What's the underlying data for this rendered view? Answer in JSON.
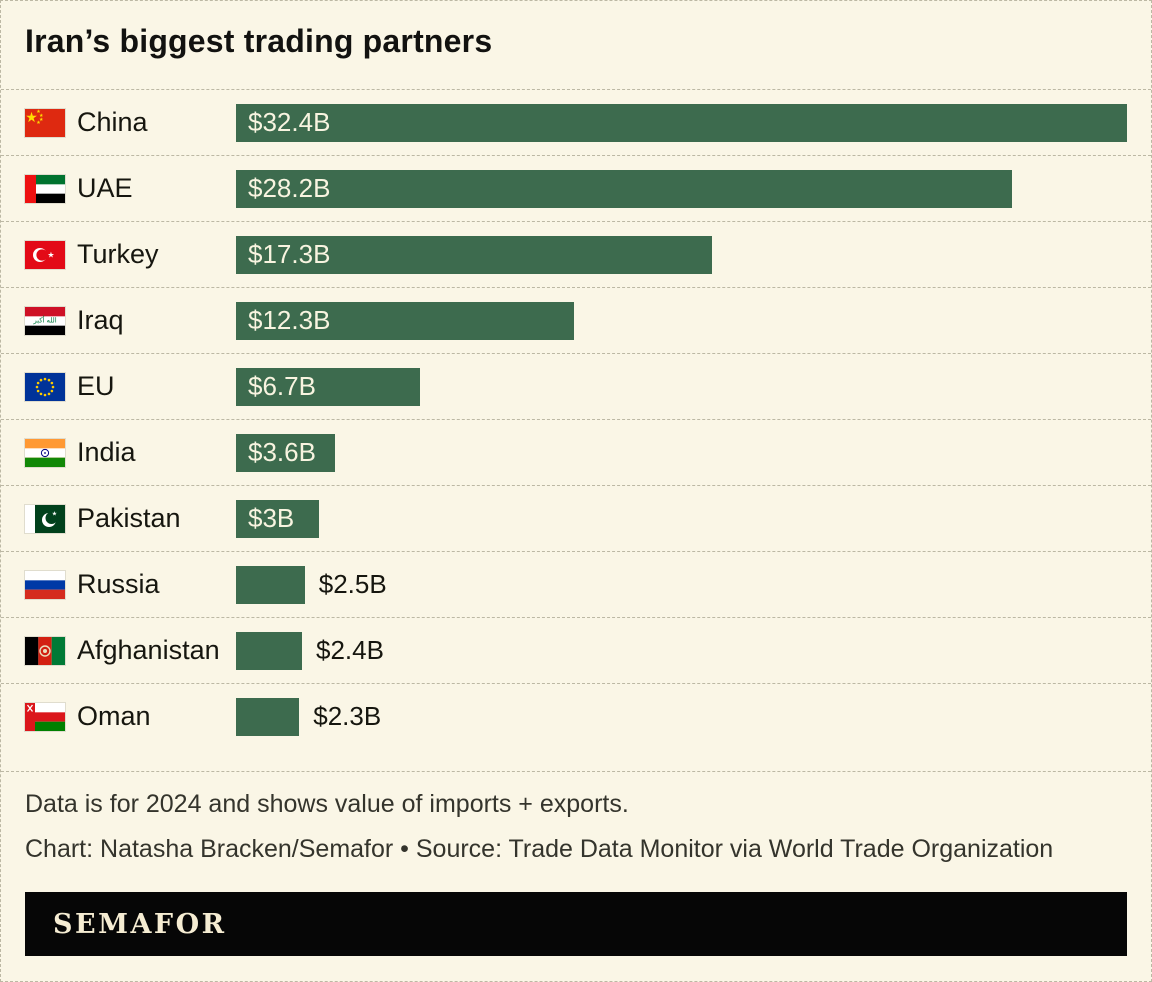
{
  "chart_data": {
    "type": "bar",
    "orientation": "horizontal",
    "title": "Iran’s biggest trading partners",
    "categories": [
      "China",
      "UAE",
      "Turkey",
      "Iraq",
      "EU",
      "India",
      "Pakistan",
      "Russia",
      "Afghanistan",
      "Oman"
    ],
    "values": [
      32.4,
      28.2,
      17.3,
      12.3,
      6.7,
      3.6,
      3,
      2.5,
      2.4,
      2.3
    ],
    "value_labels": [
      "$32.4B",
      "$28.2B",
      "$17.3B",
      "$12.3B",
      "$6.7B",
      "$3.6B",
      "$3B",
      "$2.5B",
      "$2.4B",
      "$2.3B"
    ],
    "flag_icons": [
      "china-flag-icon",
      "uae-flag-icon",
      "turkey-flag-icon",
      "iraq-flag-icon",
      "eu-flag-icon",
      "india-flag-icon",
      "pakistan-flag-icon",
      "russia-flag-icon",
      "afghanistan-flag-icon",
      "oman-flag-icon"
    ],
    "unit": "USD billions",
    "xlim": [
      0,
      32.4
    ],
    "grid": false,
    "legend": false,
    "bar_color": "#3d6b4e"
  },
  "footer": {
    "note": "Data is for 2024 and shows value of imports + exports.",
    "credit": "Chart: Natasha Bracken/Semafor • Source: Trade Data Monitor via World Trade Organization"
  },
  "branding": {
    "logo_text": "SEMAFOR"
  },
  "colors": {
    "background": "#faf6e6",
    "bar": "#3d6b4e",
    "bar_label": "#f8f4e0",
    "text": "#16160f",
    "muted_text": "#34342c",
    "divider": "#bcb8a4",
    "logo_background": "#060606",
    "logo_text": "#f5ecd2"
  }
}
